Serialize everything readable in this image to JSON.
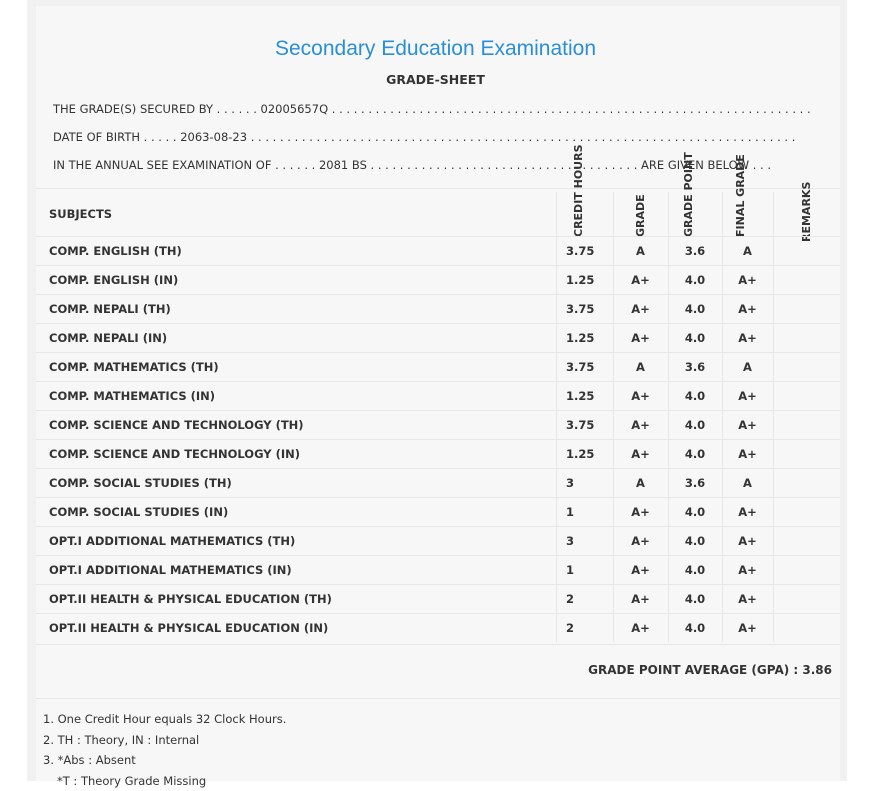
{
  "header": {
    "title": "Secondary Education Examination",
    "subtitle": "GRADE-SHEET"
  },
  "info": {
    "line1": "THE GRADE(S) SECURED BY . . . . . . 02005657Q . . . . . . . . . . . . . . . . . . . . . . . . . . . . . . . . . . . . . . . . . . . . . . . . . . . . . . . . . . . . . . . . . . . . .",
    "line2": "DATE OF BIRTH . . . . . 2063-08-23 . . . . . . . . . . . . . . . . . . . . . . . . . . . . . . . . . . . . . . . . . . . . . . . . . . . . . . . . . . . . . . . . . . . . . . . . . . .",
    "line3": "IN THE ANNUAL SEE EXAMINATION OF . . . . . . 2081 BS . . . . . . . . . . . . . . . . . . . . . . . . . . . . . . . . . . . . . ARE GIVEN BELOW . . ."
  },
  "table": {
    "headers": {
      "subjects": "SUBJECTS",
      "credit_hours": "CREDIT HOURS",
      "grade": "GRADE",
      "grade_point": "GRADE POINT",
      "final_grade": "FINAL GRADE",
      "remarks": "REMARKS"
    },
    "rows": [
      {
        "subject": "COMP. ENGLISH (TH)",
        "credit": "3.75",
        "grade": "A",
        "gp": "3.6",
        "final": "A",
        "remarks": ""
      },
      {
        "subject": "COMP. ENGLISH (IN)",
        "credit": "1.25",
        "grade": "A+",
        "gp": "4.0",
        "final": "A+",
        "remarks": ""
      },
      {
        "subject": "COMP. NEPALI (TH)",
        "credit": "3.75",
        "grade": "A+",
        "gp": "4.0",
        "final": "A+",
        "remarks": ""
      },
      {
        "subject": "COMP. NEPALI (IN)",
        "credit": "1.25",
        "grade": "A+",
        "gp": "4.0",
        "final": "A+",
        "remarks": ""
      },
      {
        "subject": "COMP. MATHEMATICS (TH)",
        "credit": "3.75",
        "grade": "A",
        "gp": "3.6",
        "final": "A",
        "remarks": ""
      },
      {
        "subject": "COMP. MATHEMATICS (IN)",
        "credit": "1.25",
        "grade": "A+",
        "gp": "4.0",
        "final": "A+",
        "remarks": ""
      },
      {
        "subject": "COMP. SCIENCE AND TECHNOLOGY (TH)",
        "credit": "3.75",
        "grade": "A+",
        "gp": "4.0",
        "final": "A+",
        "remarks": ""
      },
      {
        "subject": "COMP. SCIENCE AND TECHNOLOGY (IN)",
        "credit": "1.25",
        "grade": "A+",
        "gp": "4.0",
        "final": "A+",
        "remarks": ""
      },
      {
        "subject": "COMP. SOCIAL STUDIES (TH)",
        "credit": "3",
        "grade": "A",
        "gp": "3.6",
        "final": "A",
        "remarks": ""
      },
      {
        "subject": "COMP. SOCIAL STUDIES (IN)",
        "credit": "1",
        "grade": "A+",
        "gp": "4.0",
        "final": "A+",
        "remarks": ""
      },
      {
        "subject": "OPT.I ADDITIONAL MATHEMATICS (TH)",
        "credit": "3",
        "grade": "A+",
        "gp": "4.0",
        "final": "A+",
        "remarks": ""
      },
      {
        "subject": "OPT.I ADDITIONAL MATHEMATICS (IN)",
        "credit": "1",
        "grade": "A+",
        "gp": "4.0",
        "final": "A+",
        "remarks": ""
      },
      {
        "subject": "OPT.II HEALTH & PHYSICAL EDUCATION (TH)",
        "credit": "2",
        "grade": "A+",
        "gp": "4.0",
        "final": "A+",
        "remarks": ""
      },
      {
        "subject": "OPT.II HEALTH & PHYSICAL EDUCATION (IN)",
        "credit": "2",
        "grade": "A+",
        "gp": "4.0",
        "final": "A+",
        "remarks": ""
      }
    ]
  },
  "gpa": "GRADE POINT AVERAGE (GPA) : 3.86",
  "notes": [
    "1. One Credit Hour equals 32 Clock Hours.",
    "2. TH : Theory, IN : Internal",
    "3. *Abs : Absent",
    "*T : Theory Grade Missing"
  ]
}
